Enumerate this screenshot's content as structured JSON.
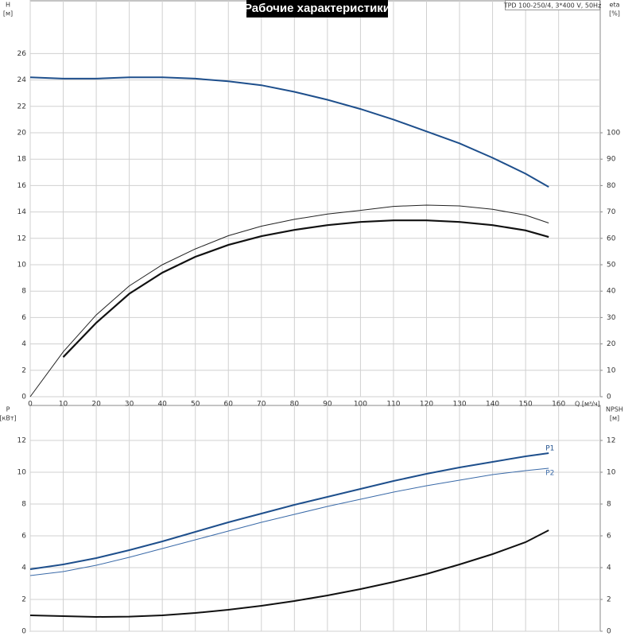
{
  "chart_data": [
    {
      "type": "line",
      "title": "Рабочие характеристики",
      "annotation": "TPD 100-250/4, 3*400 V, 50Hz",
      "ylabel": [
        "H",
        "[м]"
      ],
      "y2label": [
        "eta",
        "[%]"
      ],
      "xlabel": "Q [м³/ч]",
      "x": [
        0,
        10,
        20,
        30,
        40,
        50,
        60,
        70,
        80,
        90,
        100,
        110,
        120,
        130,
        140,
        150,
        157
      ],
      "xlim": [
        0,
        172.6
      ],
      "xticks": [
        0,
        10,
        20,
        30,
        40,
        50,
        60,
        70,
        80,
        90,
        100,
        110,
        120,
        130,
        140,
        150,
        160
      ],
      "ylim": [
        0,
        30
      ],
      "yticks": [
        0,
        2,
        4,
        6,
        8,
        10,
        12,
        14,
        16,
        18,
        20,
        22,
        24,
        26
      ],
      "y2lim": [
        0,
        150
      ],
      "y2ticks": [
        0,
        10,
        20,
        30,
        40,
        50,
        60,
        70,
        80,
        90,
        100
      ],
      "grid": true,
      "series": [
        {
          "color": "#1e4f8c",
          "width": 2,
          "values": [
            24.2,
            24.1,
            24.1,
            24.2,
            24.2,
            24.1,
            23.9,
            23.6,
            23.1,
            22.5,
            21.8,
            21.0,
            20.1,
            19.2,
            18.1,
            16.9,
            15.9
          ]
        },
        {
          "color": "#222222",
          "width": 1,
          "axis": "y2",
          "values": [
            0,
            17,
            31,
            42,
            50,
            56,
            61,
            64.6,
            67.2,
            69.2,
            70.6,
            72.1,
            72.6,
            72.3,
            71,
            68.8,
            65.8
          ]
        },
        {
          "color": "#111111",
          "width": 2.2,
          "axis": "y2",
          "values": [
            null,
            15,
            28,
            39,
            47,
            53,
            57.5,
            60.8,
            63.2,
            65,
            66.2,
            66.8,
            66.8,
            66.2,
            65,
            63,
            60.5
          ]
        }
      ]
    },
    {
      "type": "line",
      "ylabel": [
        "P",
        "[кВт]"
      ],
      "y2label": [
        "NPSH",
        "[м]"
      ],
      "x": [
        0,
        10,
        20,
        30,
        40,
        50,
        60,
        70,
        80,
        90,
        100,
        110,
        120,
        130,
        140,
        150,
        157
      ],
      "ylim": [
        0,
        14.2
      ],
      "yticks": [
        0,
        2,
        4,
        6,
        8,
        10,
        12
      ],
      "y2lim": [
        0,
        14.2
      ],
      "y2ticks": [
        0,
        2,
        4,
        6,
        8,
        10,
        12
      ],
      "grid": true,
      "series": [
        {
          "name": "P1",
          "color": "#1e4f8c",
          "width": 2,
          "values": [
            3.9,
            4.2,
            4.6,
            5.1,
            5.65,
            6.25,
            6.85,
            7.4,
            7.95,
            8.45,
            8.95,
            9.45,
            9.9,
            10.3,
            10.65,
            11.0,
            11.2
          ]
        },
        {
          "name": "P2",
          "color": "#3a6aa8",
          "width": 1,
          "values": [
            3.5,
            3.75,
            4.15,
            4.65,
            5.2,
            5.75,
            6.3,
            6.85,
            7.35,
            7.85,
            8.3,
            8.75,
            9.15,
            9.5,
            9.85,
            10.1,
            10.25
          ]
        },
        {
          "color": "#111111",
          "width": 2,
          "axis": "y2",
          "values": [
            1.0,
            0.95,
            0.9,
            0.92,
            1.0,
            1.15,
            1.35,
            1.6,
            1.9,
            2.25,
            2.65,
            3.1,
            3.6,
            4.2,
            4.85,
            5.6,
            6.35
          ]
        }
      ]
    }
  ]
}
